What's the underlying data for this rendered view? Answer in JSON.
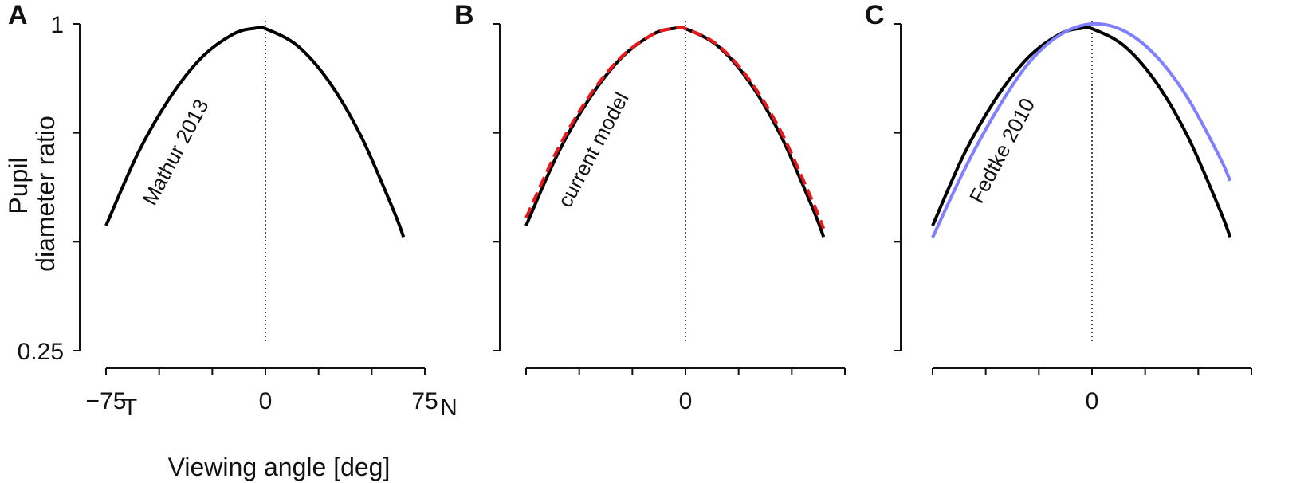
{
  "figure": {
    "ylabel_line1": "Pupil",
    "ylabel_line2": "diameter ratio",
    "xlabel": "Viewing angle [deg]"
  },
  "colors": {
    "axis": "#111111",
    "black_curve": "#000000",
    "red_dashed": "#e8191c",
    "blue_curve": "#7f7fff"
  },
  "chart_data": [
    {
      "panel": "A",
      "type": "line",
      "xlim": [
        -75,
        75
      ],
      "ylim": [
        0.25,
        1
      ],
      "yticks": [
        0.25,
        0.5,
        0.75,
        1
      ],
      "ytick_labels": [
        "0.25",
        "",
        "",
        "1"
      ],
      "xticks": [
        -75,
        -50,
        -25,
        0,
        25,
        50,
        75
      ],
      "xtick_labels": [
        {
          "value": -75,
          "text": "−75",
          "sub": "T"
        },
        {
          "value": 0,
          "text": "0",
          "sub": ""
        },
        {
          "value": 75,
          "text": "75",
          "sub": "N"
        }
      ],
      "vline_x": 0,
      "series": [
        {
          "name": "Mathur 2013",
          "style": "solid",
          "color": "black_curve",
          "x": [
            -75,
            -60,
            -45,
            -30,
            -15,
            -5,
            0,
            15,
            30,
            45,
            60,
            65
          ],
          "y": [
            0.537,
            0.703,
            0.83,
            0.923,
            0.977,
            0.99,
            0.989,
            0.95,
            0.867,
            0.742,
            0.575,
            0.511
          ]
        }
      ]
    },
    {
      "panel": "B",
      "type": "line",
      "xlim": [
        -75,
        75
      ],
      "ylim": [
        0.25,
        1
      ],
      "yticks": [
        0.25,
        0.5,
        0.75,
        1
      ],
      "ytick_labels": [
        "",
        "",
        "",
        ""
      ],
      "xticks": [
        -75,
        -50,
        -25,
        0,
        25,
        50,
        75
      ],
      "xtick_labels": [
        {
          "value": 0,
          "text": "0",
          "sub": ""
        }
      ],
      "vline_x": 0,
      "series": [
        {
          "name": "current model",
          "style": "solid",
          "color": "black_curve",
          "x": [
            -75,
            -60,
            -45,
            -30,
            -15,
            -5,
            0,
            15,
            30,
            45,
            60,
            65
          ],
          "y": [
            0.537,
            0.703,
            0.83,
            0.923,
            0.977,
            0.99,
            0.989,
            0.95,
            0.867,
            0.742,
            0.575,
            0.511
          ]
        },
        {
          "style": "dashed",
          "color": "red_dashed",
          "x": [
            -75,
            -60,
            -45,
            -30,
            -15,
            -5,
            0,
            15,
            30,
            45,
            60,
            65
          ],
          "y": [
            0.555,
            0.713,
            0.836,
            0.925,
            0.977,
            0.99,
            0.989,
            0.952,
            0.872,
            0.752,
            0.59,
            0.53
          ]
        }
      ]
    },
    {
      "panel": "C",
      "type": "line",
      "xlim": [
        -75,
        75
      ],
      "ylim": [
        0.25,
        1
      ],
      "yticks": [
        0.25,
        0.5,
        0.75,
        1
      ],
      "ytick_labels": [
        "",
        "",
        "",
        ""
      ],
      "xticks": [
        -75,
        -50,
        -25,
        0,
        25,
        50,
        75
      ],
      "xtick_labels": [
        {
          "value": 0,
          "text": "0",
          "sub": ""
        }
      ],
      "vline_x": 0,
      "series": [
        {
          "style": "solid",
          "color": "black_curve",
          "x": [
            -75,
            -60,
            -45,
            -30,
            -15,
            -5,
            0,
            15,
            30,
            45,
            60,
            65
          ],
          "y": [
            0.537,
            0.703,
            0.83,
            0.923,
            0.977,
            0.99,
            0.989,
            0.95,
            0.867,
            0.742,
            0.575,
            0.511
          ]
        },
        {
          "name": "Fedtke 2010",
          "style": "solid",
          "color": "blue_curve",
          "x": [
            -75,
            -60,
            -45,
            -30,
            -15,
            0,
            15,
            30,
            45,
            60,
            65
          ],
          "y": [
            0.51,
            0.666,
            0.8,
            0.909,
            0.975,
            1.0,
            0.984,
            0.927,
            0.83,
            0.695,
            0.64
          ]
        }
      ]
    }
  ]
}
